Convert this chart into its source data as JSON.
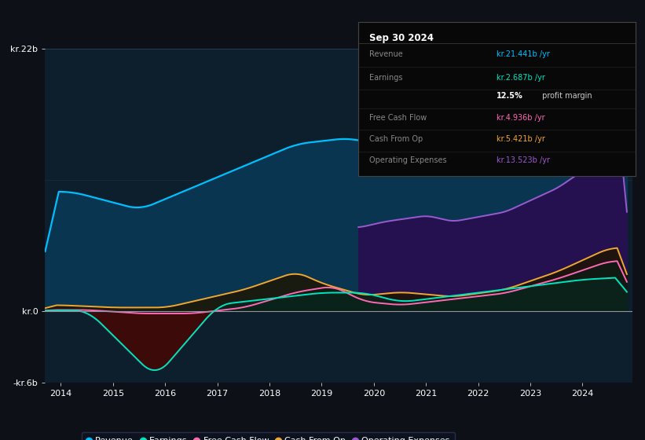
{
  "bg_color": "#0d1117",
  "plot_bg_color": "#0d1f2d",
  "revenue_color": "#00bfff",
  "earnings_color": "#00e5c0",
  "fcf_color": "#ff69b4",
  "cashop_color": "#f0a830",
  "opex_color": "#9b59d0",
  "revenue_fill_color": "#0a3a5c",
  "opex_fill_color": "#2a1060",
  "earnings_neg_fill": "#3d0a0a",
  "earnings_pos_fill": "#0a3028",
  "cashop_fill": "#1a1000",
  "fcf_fill": "#0a1a10",
  "info_box_bg": "#0a0a0a",
  "info_box_title": "Sep 30 2024",
  "legend_items": [
    {
      "label": "Revenue",
      "color": "#00bfff"
    },
    {
      "label": "Earnings",
      "color": "#00e5c0"
    },
    {
      "label": "Free Cash Flow",
      "color": "#ff69b4"
    },
    {
      "label": "Cash From Op",
      "color": "#f0a830"
    },
    {
      "label": "Operating Expenses",
      "color": "#9b59d0"
    }
  ]
}
